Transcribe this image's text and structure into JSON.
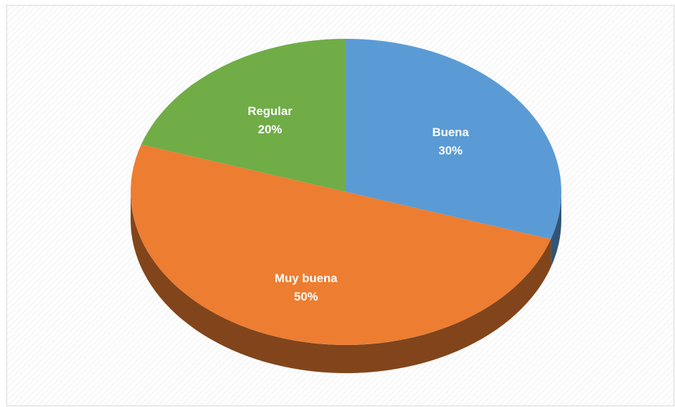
{
  "chart_data": {
    "type": "pie",
    "three_d": true,
    "categories": [
      "Buena",
      "Muy buena",
      "Regular"
    ],
    "values": [
      30,
      50,
      20
    ],
    "value_labels": [
      "30%",
      "50%",
      "20%"
    ],
    "colors": [
      "#5b9bd5",
      "#ed7d31",
      "#70ad47"
    ]
  }
}
